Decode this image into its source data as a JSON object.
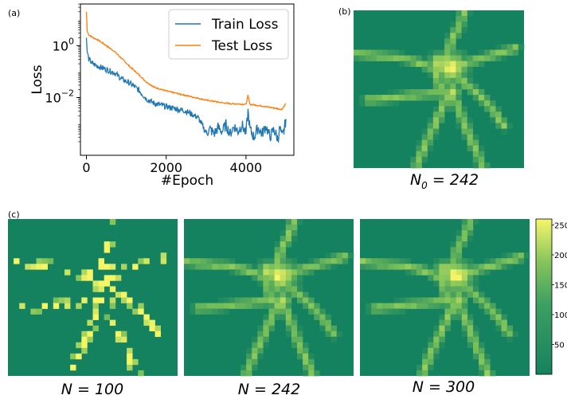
{
  "panels": {
    "a": "(a)",
    "b": "(b)",
    "c": "(c)"
  },
  "captions": {
    "b_prefix": "N",
    "b_sub": "0",
    "b_suffix": " = 242",
    "c1": "N = 100",
    "c2": "N = 242",
    "c3": "N = 300"
  },
  "colors": {
    "train": "#1f77b4",
    "test": "#ff7f0e",
    "map_low": "#15825f",
    "map_mid": "#7ac05a",
    "map_high": "#f5f566"
  },
  "chart_data": [
    {
      "type": "line",
      "xlabel": "#Epoch",
      "ylabel": "Loss",
      "yscale": "log",
      "xlim": [
        -150,
        5200
      ],
      "ylim": [
        6e-05,
        40
      ],
      "xticks": [
        "0",
        "2000",
        "4000"
      ],
      "yticks": [
        {
          "value": 1,
          "base": "10",
          "exp": "0"
        },
        {
          "value": 0.01,
          "base": "10",
          "exp": "−2"
        }
      ],
      "legend": "top-right",
      "series": [
        {
          "name": "Train Loss",
          "x": [
            0,
            20,
            60,
            150,
            300,
            500,
            700,
            900,
            1100,
            1300,
            1500,
            1700,
            2000,
            2500,
            2800,
            3000,
            3100,
            3200,
            3300,
            3400,
            3500,
            3600,
            3700,
            3800,
            3900,
            4000,
            4050,
            4100,
            4200,
            4300,
            4400,
            4500,
            4600,
            4700,
            4800,
            4850,
            4900,
            4950,
            5000
          ],
          "y": [
            2,
            0.55,
            0.3,
            0.2,
            0.16,
            0.12,
            0.09,
            0.05,
            0.035,
            0.02,
            0.009,
            0.006,
            0.0045,
            0.003,
            0.0017,
            0.00045,
            0.0006,
            0.0004,
            0.0007,
            0.0005,
            0.0009,
            0.0004,
            0.0008,
            0.0005,
            0.0009,
            0.0004,
            0.003,
            0.0006,
            0.0003,
            0.0007,
            0.0004,
            0.0008,
            0.0003,
            0.0006,
            0.00025,
            0.0007,
            0.0003,
            0.0005,
            0.0015
          ]
        },
        {
          "name": "Test Loss",
          "x": [
            0,
            20,
            60,
            150,
            300,
            500,
            700,
            900,
            1100,
            1300,
            1500,
            1700,
            2000,
            2500,
            3000,
            3500,
            4000,
            4050,
            4100,
            4500,
            4900,
            5000
          ],
          "y": [
            20,
            3.5,
            2.6,
            2.1,
            1.6,
            1.0,
            0.6,
            0.3,
            0.15,
            0.08,
            0.04,
            0.025,
            0.018,
            0.012,
            0.008,
            0.006,
            0.0055,
            0.012,
            0.0055,
            0.0045,
            0.0035,
            0.006
          ]
        }
      ]
    },
    {
      "type": "heatmap",
      "colorbar_ticks": [
        "250",
        "200",
        "150",
        "100",
        "50"
      ],
      "colorbar_range": [
        0,
        260
      ]
    }
  ]
}
